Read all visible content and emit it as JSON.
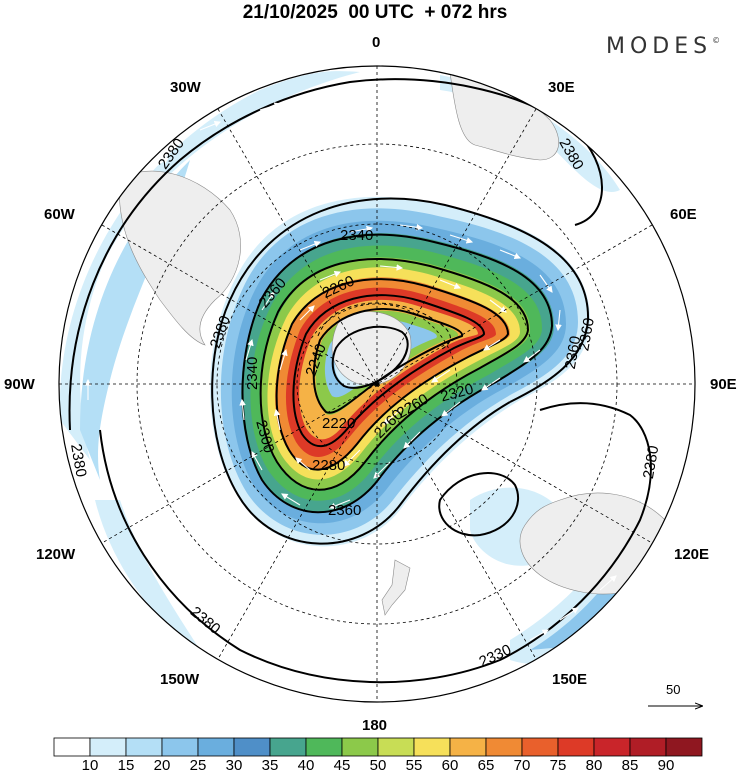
{
  "title": "21/10/2025  00 UTC  + 072 hrs",
  "brand": "MODES",
  "brand_mark": "©",
  "longitude_labels": {
    "0": "0",
    "30E": "30E",
    "60E": "60E",
    "90E": "90E",
    "120E": "120E",
    "150E": "150E",
    "180": "180",
    "150W": "150W",
    "120W": "120W",
    "90W": "90W",
    "60W": "60W",
    "30W": "30W"
  },
  "contour_labels": [
    "2380",
    "2380",
    "2380",
    "2380",
    "2380",
    "2380",
    "2340",
    "2360",
    "2360",
    "2260",
    "2240",
    "2220",
    "2300",
    "2280",
    "2360",
    "2340",
    "2260",
    "2320",
    "2260",
    "2360",
    "2330"
  ],
  "vector_reference": "50",
  "colorbar": {
    "colors": [
      "#ffffff",
      "#d4eefa",
      "#b4dff6",
      "#8cc6ec",
      "#6aaede",
      "#4f8fc8",
      "#47a58e",
      "#4fb85a",
      "#8cc94a",
      "#c8dd55",
      "#f6e05a",
      "#f5b246",
      "#f08a34",
      "#e9602c",
      "#dd3a27",
      "#c9252a",
      "#b01d26",
      "#8f1720"
    ],
    "labels": [
      "10",
      "15",
      "20",
      "25",
      "30",
      "35",
      "40",
      "45",
      "50",
      "55",
      "60",
      "65",
      "70",
      "75",
      "80",
      "85",
      "90"
    ]
  }
}
